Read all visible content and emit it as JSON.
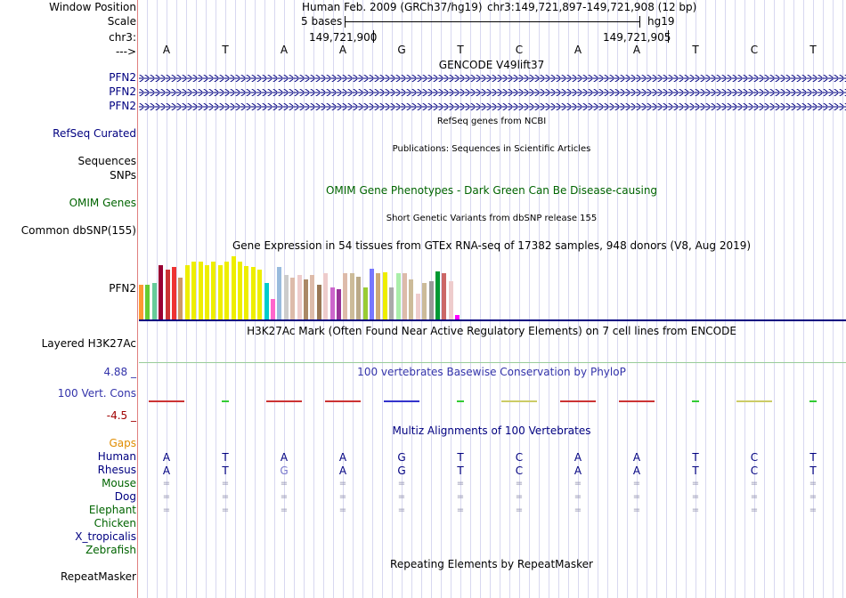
{
  "labels": {
    "window_position": "Window Position",
    "scale": "Scale",
    "chr": "chr3:",
    "arrow": "--->",
    "pfn2": "PFN2",
    "refseq": "RefSeq Curated",
    "sequences": "Sequences",
    "snps": "SNPs",
    "omim": "OMIM Genes",
    "dbsnp": "Common dbSNP(155)",
    "gtex": "PFN2",
    "h3k27": "Layered H3K27Ac",
    "cons_max": "4.88 _",
    "cons_name": "100 Vert. Cons",
    "cons_min": "-4.5 _",
    "gaps": "Gaps"
  },
  "header": {
    "assembly": "Human Feb. 2009 (GRCh37/hg19)",
    "position": "chr3:149,721,897-149,721,908 (12 bp)",
    "scale_text": "5 bases",
    "db": "hg19",
    "coord1": "149,721,900",
    "coord2": "149,721,905"
  },
  "titles": {
    "gencode": "GENCODE V49lift37",
    "refseq": "RefSeq genes from NCBI",
    "pubs": "Publications: Sequences in Scientific Articles",
    "omim": "OMIM Gene Phenotypes - Dark Green Can Be Disease-causing",
    "snp": "Short Genetic Variants from dbSNP release 155",
    "gtex": "Gene Expression in 54 tissues from GTEx RNA-seq of 17382 samples, 948 donors (V8, Aug 2019)",
    "h3k27": "H3K27Ac Mark (Often Found Near Active Regulatory Elements) on 7 cell lines from ENCODE",
    "phylop": "100 vertebrates Basewise Conservation by PhyloP",
    "multiz": "Multiz Alignments of 100 Vertebrates",
    "rmsk": "Repeating Elements by RepeatMasker"
  },
  "sequence": [
    "A",
    "T",
    "A",
    "A",
    "G",
    "T",
    "C",
    "A",
    "A",
    "T",
    "C",
    "T"
  ],
  "rhesus": [
    "A",
    "T",
    "G",
    "A",
    "G",
    "T",
    "C",
    "A",
    "A",
    "T",
    "C",
    "T"
  ],
  "species": [
    {
      "name": "Human",
      "color": "#000080"
    },
    {
      "name": "Rhesus",
      "color": "#000080"
    },
    {
      "name": "Mouse",
      "color": "#006400"
    },
    {
      "name": "Dog",
      "color": "#000080"
    },
    {
      "name": "Elephant",
      "color": "#006400"
    },
    {
      "name": "Chicken",
      "color": "#006400"
    },
    {
      "name": "X_tropicalis",
      "color": "#000080"
    },
    {
      "name": "Zebrafish",
      "color": "#006400"
    }
  ],
  "repeatmasker": "RepeatMasker",
  "gtex_colors": [
    "#ff9933",
    "#66cc33",
    "#66cc99",
    "#990033",
    "#cc3333",
    "#ee3333",
    "#cc9966",
    "#eeee00",
    "#eeee00",
    "#eeee00",
    "#eeee00",
    "#eeee00",
    "#eeee00",
    "#eeee00",
    "#eeee00",
    "#eeee00",
    "#eeee00",
    "#eeee00",
    "#eeee00",
    "#00cccc",
    "#ff66cc",
    "#99bbdd",
    "#cccccc",
    "#ddbbaa",
    "#eecccc",
    "#aa8866",
    "#ddbbaa",
    "#997755",
    "#eecccc",
    "#cc66cc",
    "#993399",
    "#ddbbaa",
    "#ccbb99",
    "#bbaa88",
    "#99cc33",
    "#7777ff",
    "#ccaa77",
    "#eeee00",
    "#aaaaaa",
    "#aaeeaa",
    "#ddbbaa",
    "#ccbb99",
    "#eecccc",
    "#ccbb99",
    "#999999",
    "#009933",
    "#cc6666",
    "#eecccc",
    "#ff00ff"
  ],
  "gtex_levels": [
    0.52,
    0.52,
    0.55,
    0.82,
    0.74,
    0.78,
    0.62,
    0.82,
    0.86,
    0.86,
    0.82,
    0.86,
    0.82,
    0.86,
    0.95,
    0.86,
    0.8,
    0.78,
    0.74,
    0.55,
    0.31,
    0.78,
    0.67,
    0.62,
    0.67,
    0.6,
    0.67,
    0.52,
    0.69,
    0.48,
    0.45,
    0.69,
    0.69,
    0.64,
    0.48,
    0.76,
    0.69,
    0.71,
    0.48,
    0.69,
    0.69,
    0.6,
    0.38,
    0.55,
    0.57,
    0.72,
    0.69,
    0.57,
    0.07
  ]
}
